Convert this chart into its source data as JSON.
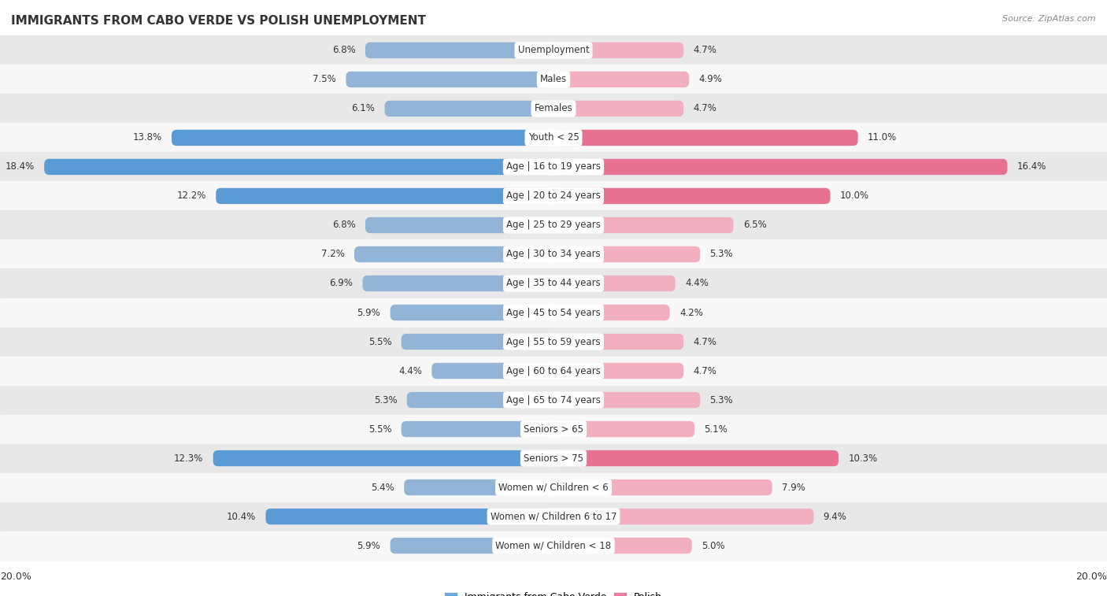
{
  "title": "IMMIGRANTS FROM CABO VERDE VS POLISH UNEMPLOYMENT",
  "source": "Source: ZipAtlas.com",
  "categories": [
    "Unemployment",
    "Males",
    "Females",
    "Youth < 25",
    "Age | 16 to 19 years",
    "Age | 20 to 24 years",
    "Age | 25 to 29 years",
    "Age | 30 to 34 years",
    "Age | 35 to 44 years",
    "Age | 45 to 54 years",
    "Age | 55 to 59 years",
    "Age | 60 to 64 years",
    "Age | 65 to 74 years",
    "Seniors > 65",
    "Seniors > 75",
    "Women w/ Children < 6",
    "Women w/ Children 6 to 17",
    "Women w/ Children < 18"
  ],
  "cabo_verde": [
    6.8,
    7.5,
    6.1,
    13.8,
    18.4,
    12.2,
    6.8,
    7.2,
    6.9,
    5.9,
    5.5,
    4.4,
    5.3,
    5.5,
    12.3,
    5.4,
    10.4,
    5.9
  ],
  "polish": [
    4.7,
    4.9,
    4.7,
    11.0,
    16.4,
    10.0,
    6.5,
    5.3,
    4.4,
    4.2,
    4.7,
    4.7,
    5.3,
    5.1,
    10.3,
    7.9,
    9.4,
    5.0
  ],
  "cabo_verde_color_normal": "#92b4d7",
  "cabo_verde_color_bright": "#5b9bd5",
  "polish_color_normal": "#f2afc0",
  "polish_color_bright": "#e87090",
  "axis_max": 20.0,
  "bg_row_gray": "#e8e8e8",
  "bg_row_white": "#f8f8f8",
  "label_bg": "#ffffff",
  "value_label_fontsize": 8.5,
  "cat_label_fontsize": 8.5,
  "title_fontsize": 11,
  "bar_height": 0.55,
  "legend_cabo_color": "#6fa8dc",
  "legend_polish_color": "#e87fa0",
  "bright_threshold": 10.0
}
